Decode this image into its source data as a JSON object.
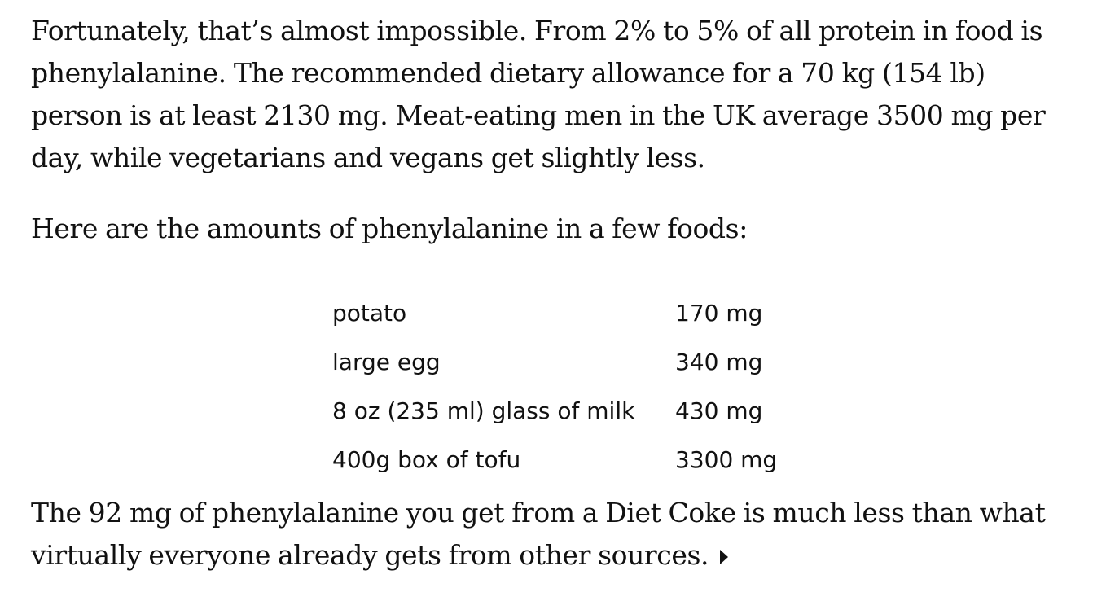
{
  "article": {
    "paragraph_1": "Fortunately, that’s almost impossible. From 2% to 5% of all protein in food is phenylalanine. The recommended dietary allowance for a 70 kg (154 lb) person is at least 2130 mg. Meat-eating men in the UK average 3500 mg per day, while vegetarians and vegans get slightly less.",
    "paragraph_2": "Here are the amounts of phenylalanine in a few foods:",
    "foods": [
      {
        "food": "potato",
        "amount": "170 mg"
      },
      {
        "food": "large egg",
        "amount": "340 mg"
      },
      {
        "food": "8 oz (235 ml) glass of milk",
        "amount": "430 mg"
      },
      {
        "food": "400g box of tofu",
        "amount": "3300 mg"
      }
    ],
    "paragraph_3": "The 92 mg of phenylalanine you get from a Diet Coke is much less than what virtually everyone already gets from other sources.",
    "more_icon": "triangle-right-icon"
  }
}
